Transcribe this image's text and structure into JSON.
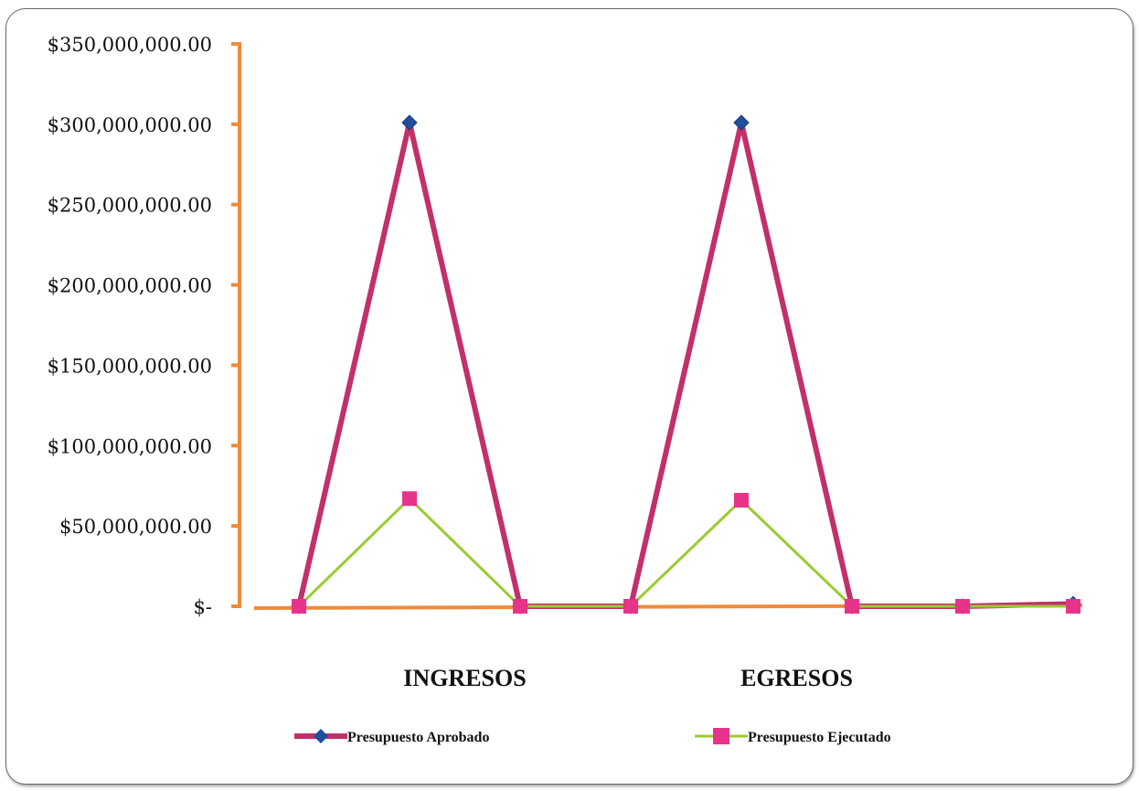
{
  "chart_data": {
    "type": "line",
    "title": "",
    "xlabel": "",
    "ylabel": "",
    "ylim": [
      0,
      350000000
    ],
    "yticks": [
      {
        "value": 350000000,
        "label": "$350,000,000.00"
      },
      {
        "value": 300000000,
        "label": "$300,000,000.00"
      },
      {
        "value": 250000000,
        "label": "$250,000,000.00"
      },
      {
        "value": 200000000,
        "label": "$200,000,000.00"
      },
      {
        "value": 150000000,
        "label": "$150,000,000.00"
      },
      {
        "value": 100000000,
        "label": "$100,000,000.00"
      },
      {
        "value": 50000000,
        "label": "$50,000,000.00"
      },
      {
        "value": 0,
        "label": "$-"
      }
    ],
    "category_labels": [
      {
        "label": "INGRESOS",
        "position": 1.5
      },
      {
        "label": "EGRESOS",
        "position": 4.5
      }
    ],
    "x": [
      0,
      1,
      2,
      3,
      4,
      5,
      6,
      7
    ],
    "series": [
      {
        "name": "Presupuesto Aprobado",
        "color": "#c2306a",
        "marker": "diamond",
        "marker_color": "#1f4e9c",
        "values": [
          0,
          301000000,
          0,
          0,
          301000000,
          0,
          0,
          1500000
        ]
      },
      {
        "name": "Presupuesto Ejecutado",
        "color": "#99cc33",
        "marker": "square",
        "marker_color": "#e8338a",
        "values": [
          0,
          67000000,
          0,
          0,
          66000000,
          0,
          0,
          0
        ]
      }
    ],
    "axis_color": "#f08a3a",
    "grid": false,
    "legend_position": "bottom"
  }
}
